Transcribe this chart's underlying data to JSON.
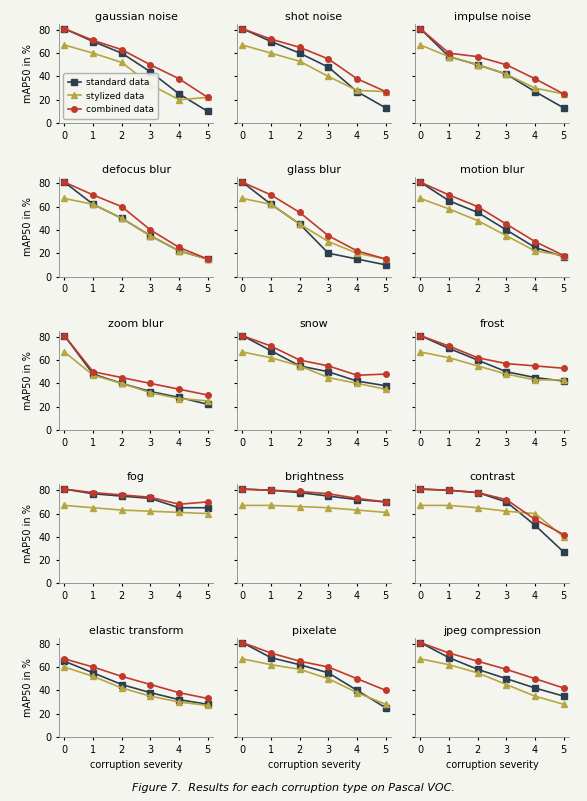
{
  "subplots": [
    {
      "title": "gaussian noise",
      "standard": [
        81,
        70,
        60,
        44,
        25,
        10
      ],
      "stylized": [
        67,
        60,
        52,
        33,
        20,
        22
      ],
      "combined": [
        81,
        71,
        63,
        50,
        38,
        22
      ]
    },
    {
      "title": "shot noise",
      "standard": [
        81,
        70,
        60,
        48,
        27,
        13
      ],
      "stylized": [
        67,
        60,
        53,
        40,
        28,
        27
      ],
      "combined": [
        81,
        72,
        65,
        55,
        38,
        27
      ]
    },
    {
      "title": "impulse noise",
      "standard": [
        81,
        57,
        50,
        42,
        27,
        13
      ],
      "stylized": [
        67,
        57,
        50,
        42,
        30,
        25
      ],
      "combined": [
        81,
        60,
        57,
        50,
        38,
        25
      ]
    },
    {
      "title": "defocus blur",
      "standard": [
        81,
        62,
        50,
        35,
        22,
        15
      ],
      "stylized": [
        67,
        62,
        50,
        35,
        22,
        15
      ],
      "combined": [
        81,
        70,
        60,
        40,
        25,
        15
      ]
    },
    {
      "title": "glass blur",
      "standard": [
        81,
        62,
        45,
        20,
        15,
        10
      ],
      "stylized": [
        67,
        62,
        45,
        30,
        20,
        15
      ],
      "combined": [
        81,
        70,
        55,
        35,
        22,
        15
      ]
    },
    {
      "title": "motion blur",
      "standard": [
        81,
        65,
        55,
        40,
        25,
        17
      ],
      "stylized": [
        67,
        58,
        48,
        35,
        22,
        18
      ],
      "combined": [
        81,
        70,
        60,
        45,
        30,
        18
      ]
    },
    {
      "title": "zoom blur",
      "standard": [
        81,
        48,
        40,
        33,
        28,
        22
      ],
      "stylized": [
        67,
        47,
        40,
        32,
        27,
        25
      ],
      "combined": [
        81,
        50,
        45,
        40,
        35,
        30
      ]
    },
    {
      "title": "snow",
      "standard": [
        81,
        68,
        55,
        50,
        42,
        38
      ],
      "stylized": [
        67,
        62,
        55,
        45,
        40,
        35
      ],
      "combined": [
        81,
        72,
        60,
        55,
        47,
        48
      ]
    },
    {
      "title": "frost",
      "standard": [
        81,
        70,
        60,
        50,
        45,
        42
      ],
      "stylized": [
        67,
        62,
        55,
        48,
        43,
        43
      ],
      "combined": [
        81,
        72,
        62,
        57,
        55,
        53
      ]
    },
    {
      "title": "fog",
      "standard": [
        81,
        77,
        75,
        73,
        65,
        65
      ],
      "stylized": [
        67,
        65,
        63,
        62,
        61,
        60
      ],
      "combined": [
        81,
        78,
        76,
        74,
        68,
        70
      ]
    },
    {
      "title": "brightness",
      "standard": [
        81,
        80,
        78,
        75,
        72,
        70
      ],
      "stylized": [
        67,
        67,
        66,
        65,
        63,
        61
      ],
      "combined": [
        81,
        80,
        79,
        77,
        73,
        70
      ]
    },
    {
      "title": "contrast",
      "standard": [
        81,
        80,
        78,
        70,
        50,
        27
      ],
      "stylized": [
        67,
        67,
        65,
        62,
        60,
        40
      ],
      "combined": [
        81,
        80,
        78,
        72,
        55,
        42
      ]
    },
    {
      "title": "elastic transform",
      "standard": [
        65,
        55,
        45,
        38,
        32,
        28
      ],
      "stylized": [
        60,
        52,
        42,
        35,
        30,
        27
      ],
      "combined": [
        67,
        60,
        52,
        45,
        38,
        33
      ]
    },
    {
      "title": "pixelate",
      "standard": [
        81,
        68,
        62,
        55,
        40,
        25
      ],
      "stylized": [
        67,
        62,
        58,
        50,
        38,
        28
      ],
      "combined": [
        81,
        72,
        65,
        60,
        50,
        40
      ]
    },
    {
      "title": "jpeg compression",
      "standard": [
        81,
        68,
        58,
        50,
        42,
        35
      ],
      "stylized": [
        67,
        62,
        55,
        45,
        35,
        28
      ],
      "combined": [
        81,
        72,
        65,
        58,
        50,
        42
      ]
    }
  ],
  "color_standard": "#2d3e50",
  "color_stylized": "#b5a642",
  "color_combined": "#c0392b",
  "marker_standard": "s",
  "marker_stylized": "^",
  "marker_combined": "o",
  "xlabel": "corruption severity",
  "ylabel": "mAP50 in %",
  "ylim": [
    0,
    85
  ],
  "xlim": [
    -0.2,
    5.2
  ],
  "xticks": [
    0,
    1,
    2,
    3,
    4,
    5
  ],
  "yticks": [
    0,
    20,
    40,
    60,
    80
  ],
  "figure_caption": "Figure 7.  Results for each corruption type on Pascal VOC.",
  "nrows": 5,
  "ncols": 3,
  "background_color": "#f5f5f0"
}
